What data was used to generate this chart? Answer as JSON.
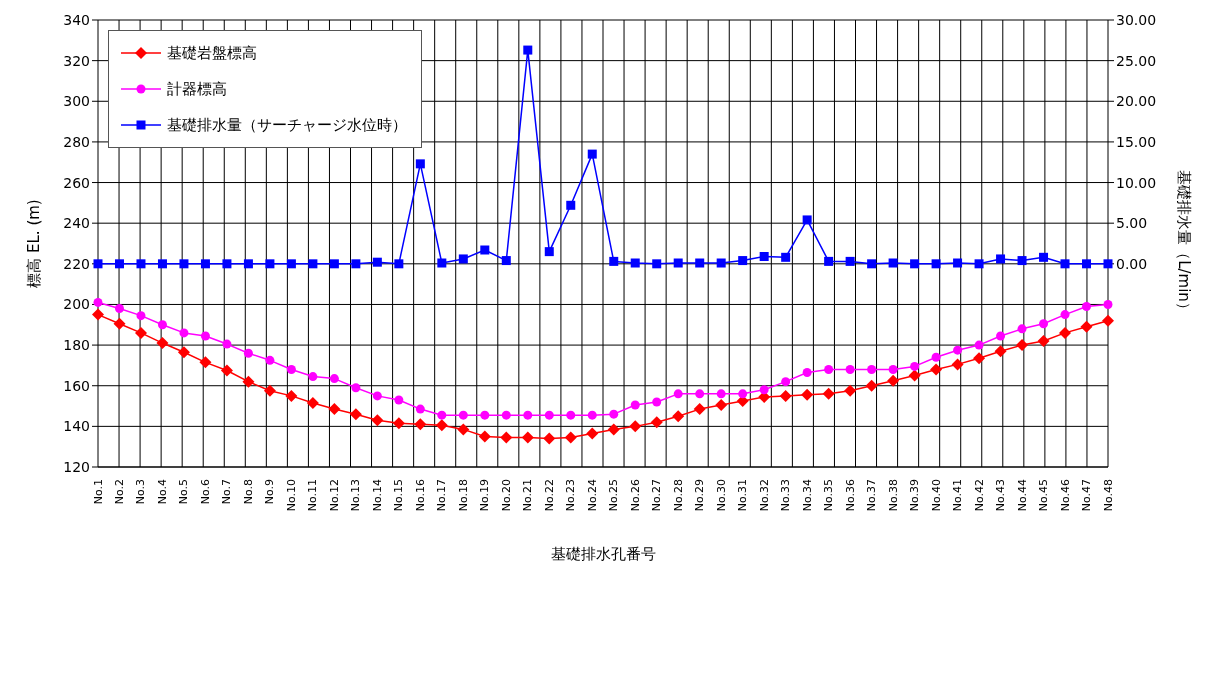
{
  "chart_data": {
    "type": "line",
    "xlabel": "基礎排水孔番号",
    "ylabel": "標高 EL. (m)",
    "y2label": "基礎排水量（L/min）",
    "categories": [
      "No.1",
      "No.2",
      "No.3",
      "No.4",
      "No.5",
      "No.6",
      "No.7",
      "No.8",
      "No.9",
      "No.10",
      "No.11",
      "No.12",
      "No.13",
      "No.14",
      "No.15",
      "No.16",
      "No.17",
      "No.18",
      "No.19",
      "No.20",
      "No.21",
      "No.22",
      "No.23",
      "No.24",
      "No.25",
      "No.26",
      "No.27",
      "No.28",
      "No.29",
      "No.30",
      "No.31",
      "No.32",
      "No.33",
      "No.34",
      "No.35",
      "No.36",
      "No.37",
      "No.38",
      "No.39",
      "No.40",
      "No.41",
      "No.42",
      "No.43",
      "No.44",
      "No.45",
      "No.46",
      "No.47",
      "No.48"
    ],
    "series": [
      {
        "name": "基礎岩盤標高",
        "color": "#ff0000",
        "marker": "diamond",
        "values": [
          195,
          190.5,
          186,
          181,
          176.5,
          171.5,
          167.5,
          162,
          157.5,
          155,
          151.5,
          148.5,
          146,
          143,
          141.5,
          141,
          140.5,
          138.5,
          135,
          134.5,
          134.5,
          134,
          134.5,
          136.5,
          138.5,
          140,
          142,
          145,
          148.5,
          150.5,
          152.5,
          154.5,
          155,
          155.5,
          156,
          157.5,
          160,
          162.5,
          165,
          168,
          170.5,
          173.5,
          177,
          180,
          182,
          186,
          189,
          192
        ]
      },
      {
        "name": "計器標高",
        "color": "#ff00ff",
        "marker": "circle",
        "values": [
          201,
          198,
          194.5,
          190,
          186,
          184.5,
          180.5,
          176,
          172.5,
          168,
          164.5,
          163.5,
          159,
          155,
          153,
          148.5,
          145.5,
          145.5,
          145.5,
          145.5,
          145.5,
          145.5,
          145.5,
          145.5,
          146,
          150.5,
          152,
          156,
          156,
          156,
          156,
          158,
          162,
          166.5,
          168,
          168,
          168,
          168,
          169.5,
          174,
          177.5,
          180,
          184.5,
          188,
          190.5,
          195,
          199,
          200
        ]
      },
      {
        "name": "基礎排水量（サーチャージ水位時）",
        "color": "#0000ff",
        "marker": "square",
        "axis": "y2",
        "values": [
          0,
          0,
          0,
          0,
          0,
          0,
          0,
          0,
          0,
          0,
          0,
          0,
          0,
          0.2,
          0,
          12.3,
          0.1,
          0.6,
          1.7,
          0.4,
          26.3,
          1.5,
          7.2,
          13.5,
          0.3,
          0.1,
          0,
          0.1,
          0.1,
          0.1,
          0.4,
          0.9,
          0.8,
          5.4,
          0.3,
          0.3,
          0,
          0.1,
          0,
          0,
          0.1,
          0,
          0.6,
          0.4,
          0.8,
          0,
          0,
          0
        ]
      }
    ],
    "ylim": [
      120,
      340
    ],
    "yticks": [
      120,
      140,
      160,
      180,
      200,
      220,
      240,
      260,
      280,
      300,
      320,
      340
    ],
    "y2lim": [
      -25,
      30
    ],
    "y2ticks": [
      {
        "value": 0,
        "label": "0.00"
      },
      {
        "value": 5,
        "label": "5.00"
      },
      {
        "value": 10,
        "label": "10.00"
      },
      {
        "value": 15,
        "label": "15.00"
      },
      {
        "value": 20,
        "label": "20.00"
      },
      {
        "value": 25,
        "label": "25.00"
      },
      {
        "value": 30,
        "label": "30.00"
      }
    ],
    "grid": true,
    "legend": "top left"
  }
}
